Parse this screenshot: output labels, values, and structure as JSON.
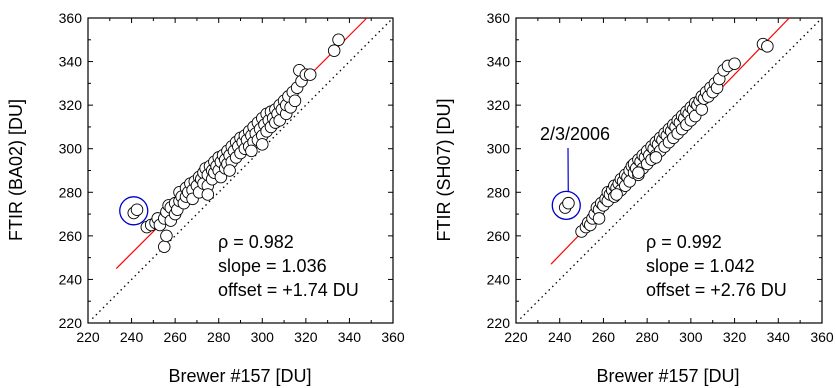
{
  "chart_data": [
    {
      "type": "scatter",
      "panel": "left",
      "xlabel": "Brewer #157 [DU]",
      "ylabel": "FTIR (BA02) [DU]",
      "xlim": [
        220,
        360
      ],
      "ylim": [
        220,
        360
      ],
      "xticks": [
        220,
        240,
        260,
        280,
        300,
        320,
        340,
        360
      ],
      "yticks": [
        220,
        240,
        260,
        280,
        300,
        320,
        340,
        360
      ],
      "stats": {
        "rho": "ρ = 0.982",
        "slope": "slope = 1.036",
        "offset": "offset = +1.74 DU"
      },
      "fit": {
        "color": "#ff0000",
        "x": [
          233,
          348
        ],
        "y": [
          245,
          360
        ]
      },
      "identity": {
        "x": [
          222,
          360
        ],
        "y": [
          222,
          360
        ]
      },
      "outlier_circle": {
        "color": "#0000cc",
        "x": 241,
        "y": 271.5
      },
      "points": [
        [
          241,
          270.5
        ],
        [
          242.5,
          272
        ],
        [
          247,
          264
        ],
        [
          249,
          265
        ],
        [
          251,
          266
        ],
        [
          252,
          268
        ],
        [
          253,
          265
        ],
        [
          255,
          255
        ],
        [
          256,
          260
        ],
        [
          255,
          268
        ],
        [
          256,
          271
        ],
        [
          257,
          274
        ],
        [
          258,
          273
        ],
        [
          258,
          267
        ],
        [
          260,
          270
        ],
        [
          260,
          275
        ],
        [
          261,
          272
        ],
        [
          262,
          276
        ],
        [
          262,
          280
        ],
        [
          263,
          278
        ],
        [
          264,
          275
        ],
        [
          265,
          282
        ],
        [
          265,
          278
        ],
        [
          266,
          280
        ],
        [
          267,
          284
        ],
        [
          268,
          281
        ],
        [
          268,
          277
        ],
        [
          269,
          285
        ],
        [
          270,
          283
        ],
        [
          271,
          287
        ],
        [
          271,
          280
        ],
        [
          272,
          286
        ],
        [
          273,
          289
        ],
        [
          273,
          284
        ],
        [
          274,
          291
        ],
        [
          275,
          288
        ],
        [
          275,
          283
        ],
        [
          276,
          292
        ],
        [
          277,
          290
        ],
        [
          277,
          286
        ],
        [
          278,
          294
        ],
        [
          278,
          289
        ],
        [
          279,
          292
        ],
        [
          280,
          296
        ],
        [
          280,
          290
        ],
        [
          281,
          294
        ],
        [
          281,
          287
        ],
        [
          282,
          297
        ],
        [
          283,
          295
        ],
        [
          283,
          291
        ],
        [
          284,
          299
        ],
        [
          284,
          293
        ],
        [
          285,
          297
        ],
        [
          286,
          301
        ],
        [
          286,
          294
        ],
        [
          287,
          299
        ],
        [
          288,
          303
        ],
        [
          288,
          296
        ],
        [
          289,
          301
        ],
        [
          290,
          305
        ],
        [
          290,
          298
        ],
        [
          291,
          303
        ],
        [
          292,
          300
        ],
        [
          292,
          306
        ],
        [
          293,
          304
        ],
        [
          294,
          308
        ],
        [
          294,
          301
        ],
        [
          295,
          306
        ],
        [
          296,
          303
        ],
        [
          296,
          310
        ],
        [
          297,
          307
        ],
        [
          298,
          312
        ],
        [
          298,
          304
        ],
        [
          299,
          309
        ],
        [
          300,
          314
        ],
        [
          300,
          306
        ],
        [
          301,
          311
        ],
        [
          302,
          316
        ],
        [
          302,
          308
        ],
        [
          303,
          313
        ],
        [
          304,
          317
        ],
        [
          304,
          310
        ],
        [
          305,
          314
        ],
        [
          306,
          318
        ],
        [
          306,
          312
        ],
        [
          307,
          316
        ],
        [
          308,
          320
        ],
        [
          308,
          313
        ],
        [
          309,
          318
        ],
        [
          310,
          322
        ],
        [
          311,
          316
        ],
        [
          311,
          320
        ],
        [
          312,
          324
        ],
        [
          313,
          319
        ],
        [
          314,
          326
        ],
        [
          315,
          322
        ],
        [
          316,
          328
        ],
        [
          317,
          336
        ],
        [
          318,
          331
        ],
        [
          320,
          334
        ],
        [
          322,
          334
        ],
        [
          333,
          345
        ],
        [
          335,
          350
        ],
        [
          300,
          302
        ],
        [
          295,
          299
        ],
        [
          285,
          290
        ],
        [
          275,
          279
        ]
      ]
    },
    {
      "type": "scatter",
      "panel": "right",
      "xlabel": "Brewer #157 [DU]",
      "ylabel": "FTIR (SH07) [DU]",
      "xlim": [
        220,
        360
      ],
      "ylim": [
        220,
        360
      ],
      "xticks": [
        220,
        240,
        260,
        280,
        300,
        320,
        340,
        360
      ],
      "yticks": [
        220,
        240,
        260,
        280,
        300,
        320,
        340,
        360
      ],
      "stats": {
        "rho": "ρ = 0.992",
        "slope": "slope = 1.042",
        "offset": "offset = +2.76 DU"
      },
      "annotation": "2/3/2006",
      "fit": {
        "color": "#ff0000",
        "x": [
          236,
          345
        ],
        "y": [
          247,
          360
        ]
      },
      "identity": {
        "x": [
          222,
          360
        ],
        "y": [
          222,
          360
        ]
      },
      "outlier_circle": {
        "color": "#0000cc",
        "x": 243,
        "y": 274
      },
      "points": [
        [
          242.5,
          273
        ],
        [
          244,
          275
        ],
        [
          250,
          262
        ],
        [
          252,
          264
        ],
        [
          253,
          266
        ],
        [
          254,
          265
        ],
        [
          255,
          268
        ],
        [
          256,
          270
        ],
        [
          257,
          273
        ],
        [
          258,
          272
        ],
        [
          258,
          268
        ],
        [
          259,
          275
        ],
        [
          260,
          274
        ],
        [
          261,
          277
        ],
        [
          262,
          280
        ],
        [
          262,
          276
        ],
        [
          263,
          279
        ],
        [
          264,
          281
        ],
        [
          265,
          283
        ],
        [
          265,
          278
        ],
        [
          266,
          282
        ],
        [
          267,
          284
        ],
        [
          268,
          286
        ],
        [
          268,
          281
        ],
        [
          269,
          285
        ],
        [
          270,
          288
        ],
        [
          270,
          283
        ],
        [
          271,
          287
        ],
        [
          272,
          290
        ],
        [
          272,
          285
        ],
        [
          273,
          292
        ],
        [
          274,
          289
        ],
        [
          274,
          293
        ],
        [
          275,
          291
        ],
        [
          276,
          295
        ],
        [
          276,
          288
        ],
        [
          277,
          294
        ],
        [
          278,
          297
        ],
        [
          278,
          291
        ],
        [
          279,
          296
        ],
        [
          280,
          299
        ],
        [
          280,
          293
        ],
        [
          281,
          297
        ],
        [
          282,
          301
        ],
        [
          282,
          295
        ],
        [
          283,
          300
        ],
        [
          284,
          303
        ],
        [
          284,
          297
        ],
        [
          285,
          302
        ],
        [
          286,
          305
        ],
        [
          286,
          299
        ],
        [
          287,
          304
        ],
        [
          288,
          307
        ],
        [
          288,
          301
        ],
        [
          289,
          306
        ],
        [
          290,
          309
        ],
        [
          290,
          303
        ],
        [
          291,
          308
        ],
        [
          292,
          311
        ],
        [
          292,
          305
        ],
        [
          293,
          310
        ],
        [
          294,
          313
        ],
        [
          294,
          307
        ],
        [
          295,
          312
        ],
        [
          296,
          315
        ],
        [
          296,
          309
        ],
        [
          297,
          314
        ],
        [
          298,
          317
        ],
        [
          298,
          311
        ],
        [
          299,
          316
        ],
        [
          300,
          319
        ],
        [
          300,
          313
        ],
        [
          301,
          318
        ],
        [
          302,
          321
        ],
        [
          302,
          315
        ],
        [
          303,
          320
        ],
        [
          304,
          322
        ],
        [
          305,
          324
        ],
        [
          305,
          318
        ],
        [
          306,
          323
        ],
        [
          307,
          326
        ],
        [
          308,
          324
        ],
        [
          309,
          328
        ],
        [
          310,
          326
        ],
        [
          311,
          330
        ],
        [
          312,
          328
        ],
        [
          313,
          332
        ],
        [
          315,
          336
        ],
        [
          317,
          338
        ],
        [
          320,
          339
        ],
        [
          333,
          348
        ],
        [
          335,
          347
        ],
        [
          284,
          296
        ],
        [
          276,
          289
        ],
        [
          266,
          279
        ]
      ]
    }
  ]
}
